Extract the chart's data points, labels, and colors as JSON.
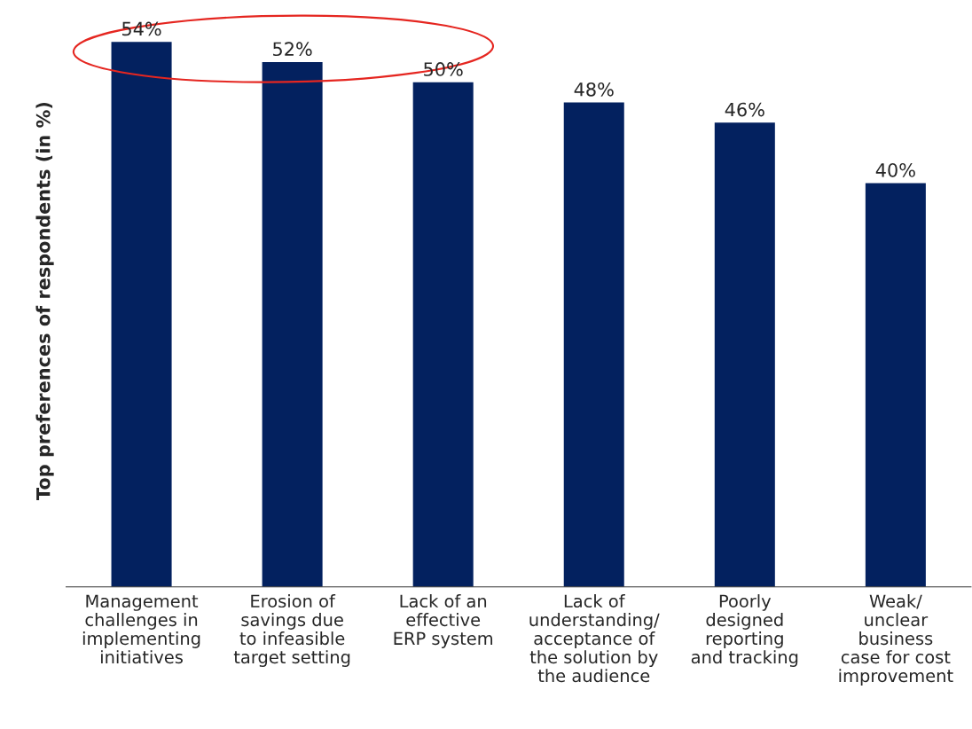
{
  "chart_data": {
    "type": "bar",
    "categories": [
      "Management\nchallenges in\nimplementing\ninitiatives",
      "Erosion of\nsavings due\nto infeasible\ntarget setting",
      "Lack of an\neffective\nERP system",
      "Lack of\nunderstanding/\nacceptance of\nthe solution by\nthe audience",
      "Poorly\ndesigned\nreporting\nand tracking",
      "Weak/\nunclear\nbusiness\ncase for cost\nimprovement"
    ],
    "values": [
      54,
      52,
      50,
      48,
      46,
      40
    ],
    "value_labels": [
      "54%",
      "52%",
      "50%",
      "48%",
      "46%",
      "40%"
    ],
    "color": "#03215f",
    "ylabel": "Top preferences of respondents (in %)",
    "tick_labels": "x",
    "grid": false
  }
}
